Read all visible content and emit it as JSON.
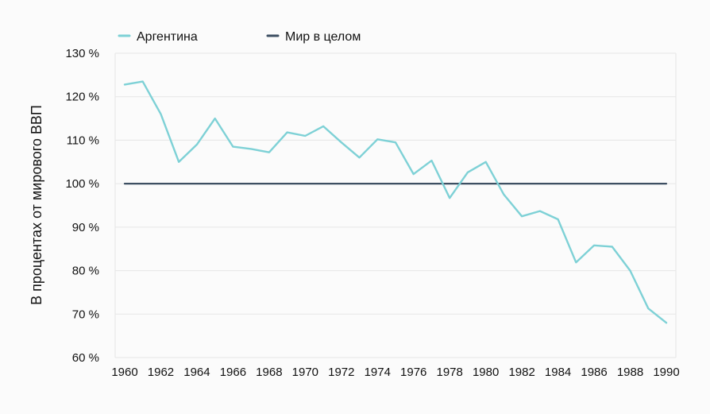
{
  "chart_data": {
    "type": "line",
    "title": "",
    "xlabel": "",
    "ylabel": "В процентах от мирового ВВП",
    "x": [
      1960,
      1961,
      1962,
      1963,
      1964,
      1965,
      1966,
      1967,
      1968,
      1969,
      1970,
      1971,
      1972,
      1973,
      1974,
      1975,
      1976,
      1977,
      1978,
      1979,
      1980,
      1981,
      1982,
      1983,
      1984,
      1985,
      1986,
      1987,
      1988,
      1989,
      1990
    ],
    "xticks": [
      "1960",
      "1962",
      "1964",
      "1966",
      "1968",
      "1970",
      "1972",
      "1974",
      "1976",
      "1978",
      "1980",
      "1982",
      "1984",
      "1986",
      "1988",
      "1990"
    ],
    "ylim": [
      60,
      130
    ],
    "yticks": [
      "60 %",
      "70 %",
      "80 %",
      "90 %",
      "100 %",
      "110 %",
      "120 %",
      "130 %"
    ],
    "grid": true,
    "legend_position": "top-left",
    "series": [
      {
        "name": "Аргентина",
        "color": "#7ed1d6",
        "values": [
          122.8,
          123.5,
          116.0,
          105.0,
          109.0,
          115.0,
          108.5,
          108.0,
          107.2,
          111.8,
          111.0,
          113.2,
          109.5,
          106.0,
          110.2,
          109.5,
          102.2,
          105.3,
          96.7,
          102.6,
          105.0,
          97.5,
          92.5,
          93.7,
          91.8,
          81.9,
          85.8,
          85.5,
          80.0,
          71.3,
          68.0
        ]
      },
      {
        "name": "Мир в целом",
        "color": "#3d4f62",
        "values": [
          100,
          100,
          100,
          100,
          100,
          100,
          100,
          100,
          100,
          100,
          100,
          100,
          100,
          100,
          100,
          100,
          100,
          100,
          100,
          100,
          100,
          100,
          100,
          100,
          100,
          100,
          100,
          100,
          100,
          100,
          100
        ]
      }
    ]
  }
}
